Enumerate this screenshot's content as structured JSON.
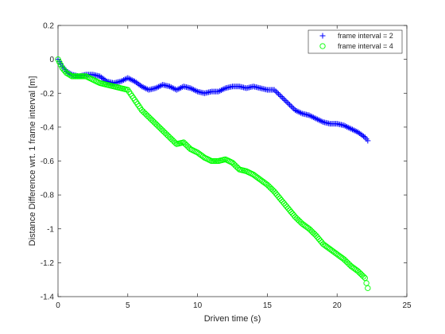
{
  "chart_data": {
    "type": "scatter",
    "title": "",
    "xlabel": "Driven time (s)",
    "ylabel": "Distance Difference wrt. 1 frame interval [m]",
    "xlim": [
      0,
      25
    ],
    "ylim": [
      -1.4,
      0.2
    ],
    "xticks": [
      0,
      5,
      10,
      15,
      20,
      25
    ],
    "yticks": [
      0.2,
      0,
      -0.2,
      -0.4,
      -0.6,
      -0.8,
      -1,
      -1.2,
      -1.4
    ],
    "xtick_labels": [
      "0",
      "5",
      "10",
      "15",
      "20",
      "25"
    ],
    "ytick_labels": [
      "0.2",
      "0",
      "-0.2",
      "-0.4",
      "-0.6",
      "-0.8",
      "-1",
      "-1.2",
      "-1.4"
    ],
    "grid": false,
    "legend_position": "top-right",
    "series": [
      {
        "name": "frame interval = 2",
        "marker": "plus",
        "color": "#0000ff",
        "x": [
          0,
          0.3,
          0.6,
          1,
          1.5,
          2,
          2.5,
          3,
          3.5,
          4,
          4.5,
          5,
          5.5,
          6,
          6.5,
          7,
          7.5,
          8,
          8.5,
          9,
          9.5,
          10,
          10.5,
          11,
          11.5,
          12,
          12.5,
          13,
          13.5,
          14,
          14.5,
          15,
          15.5,
          16,
          16.5,
          17,
          17.5,
          18,
          18.5,
          19,
          19.5,
          20,
          20.5,
          21,
          21.5,
          22,
          22.2
        ],
        "y": [
          0,
          -0.04,
          -0.07,
          -0.09,
          -0.1,
          -0.09,
          -0.09,
          -0.1,
          -0.13,
          -0.14,
          -0.13,
          -0.11,
          -0.13,
          -0.16,
          -0.18,
          -0.17,
          -0.15,
          -0.16,
          -0.18,
          -0.16,
          -0.17,
          -0.19,
          -0.2,
          -0.19,
          -0.19,
          -0.17,
          -0.16,
          -0.16,
          -0.17,
          -0.16,
          -0.17,
          -0.18,
          -0.18,
          -0.22,
          -0.26,
          -0.3,
          -0.32,
          -0.33,
          -0.35,
          -0.37,
          -0.38,
          -0.38,
          -0.39,
          -0.41,
          -0.43,
          -0.46,
          -0.48
        ]
      },
      {
        "name": "frame interval = 4",
        "marker": "circle",
        "color": "#00ff00",
        "x": [
          0,
          0.3,
          0.6,
          1,
          1.5,
          2,
          2.5,
          3,
          3.5,
          4,
          4.5,
          5,
          5.5,
          6,
          6.5,
          7,
          7.5,
          8,
          8.5,
          9,
          9.5,
          10,
          10.5,
          11,
          11.5,
          12,
          12.5,
          13,
          13.5,
          14,
          14.5,
          15,
          15.5,
          16,
          16.5,
          17,
          17.5,
          18,
          18.5,
          19,
          19.5,
          20,
          20.5,
          21,
          21.5,
          22,
          22.2
        ],
        "y": [
          0,
          -0.05,
          -0.08,
          -0.1,
          -0.1,
          -0.1,
          -0.12,
          -0.14,
          -0.15,
          -0.16,
          -0.17,
          -0.18,
          -0.24,
          -0.3,
          -0.34,
          -0.38,
          -0.42,
          -0.46,
          -0.5,
          -0.49,
          -0.53,
          -0.55,
          -0.58,
          -0.6,
          -0.6,
          -0.59,
          -0.61,
          -0.65,
          -0.66,
          -0.68,
          -0.71,
          -0.74,
          -0.78,
          -0.83,
          -0.88,
          -0.93,
          -0.97,
          -1.0,
          -1.04,
          -1.09,
          -1.12,
          -1.15,
          -1.18,
          -1.22,
          -1.25,
          -1.29,
          -1.35
        ]
      }
    ]
  }
}
